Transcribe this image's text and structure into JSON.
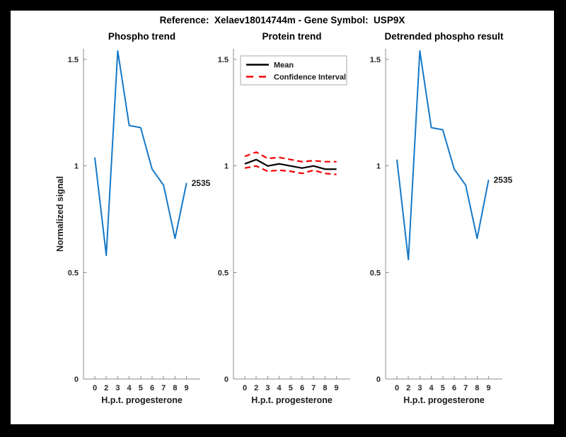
{
  "figure": {
    "title": "Reference:  Xelaev18014744m - Gene Symbol:  USP9X",
    "background": "#000000",
    "canvas": "#ffffff"
  },
  "colors": {
    "line_blue": "#1478c8",
    "mean_black": "#000000",
    "ci_red": "#f40000",
    "axis": "#8c8c8c",
    "legend_border": "#aaaaaa",
    "text": "#262626"
  },
  "chart_data": [
    {
      "id": "phospho-trend",
      "type": "line",
      "title": "Phospho trend",
      "xlabel": "H.p.t. progesterone",
      "ylabel": "Normalized signal",
      "ylim": [
        0,
        1.55
      ],
      "yticks": [
        0,
        0.5,
        1,
        1.5
      ],
      "ytick_labels": [
        "0",
        "0.5",
        "1",
        "1.5"
      ],
      "categories": [
        "0",
        "2",
        "3",
        "4",
        "5",
        "6",
        "7",
        "8",
        "9"
      ],
      "grid": false,
      "series": [
        {
          "name": "2535",
          "color": "#1478c8",
          "width": 2,
          "values": [
            1.04,
            0.58,
            1.54,
            1.19,
            1.18,
            0.985,
            0.91,
            0.66,
            0.92
          ]
        }
      ],
      "end_label": "2535"
    },
    {
      "id": "protein-trend",
      "type": "line",
      "title": "Protein trend",
      "xlabel": "H.p.t. progesterone",
      "ylabel": "",
      "ylim": [
        0,
        1.55
      ],
      "yticks": [
        0,
        0.5,
        1,
        1.5
      ],
      "ytick_labels": [
        "0",
        "0.5",
        "1",
        "1.5"
      ],
      "categories": [
        "0",
        "2",
        "3",
        "4",
        "5",
        "6",
        "7",
        "8",
        "9"
      ],
      "grid": false,
      "series": [
        {
          "name": "Mean",
          "color": "#000000",
          "width": 2.2,
          "values": [
            1.01,
            1.03,
            1.0,
            1.01,
            1.0,
            0.99,
            1.0,
            0.985,
            0.985
          ]
        },
        {
          "name": "CI upper",
          "color": "#f40000",
          "width": 2.2,
          "dash": "8 5",
          "values": [
            1.045,
            1.065,
            1.035,
            1.04,
            1.03,
            1.02,
            1.025,
            1.02,
            1.02
          ]
        },
        {
          "name": "CI lower",
          "color": "#f40000",
          "width": 2.2,
          "dash": "8 5",
          "values": [
            0.99,
            1.0,
            0.975,
            0.98,
            0.975,
            0.965,
            0.98,
            0.965,
            0.96
          ]
        }
      ],
      "legend": {
        "position": "top-left",
        "entries": [
          {
            "label": "Mean",
            "color": "#000000"
          },
          {
            "label": "Confidence Interval",
            "color": "#f40000",
            "dash": "10 8"
          }
        ]
      }
    },
    {
      "id": "detrended-phospho-result",
      "type": "line",
      "title": "Detrended phospho result",
      "xlabel": "H.p.t. progesterone",
      "ylabel": "",
      "ylim": [
        0,
        1.55
      ],
      "yticks": [
        0,
        0.5,
        1,
        1.5
      ],
      "ytick_labels": [
        "0",
        "0.5",
        "1",
        "1.5"
      ],
      "categories": [
        "0",
        "2",
        "3",
        "4",
        "5",
        "6",
        "7",
        "8",
        "9"
      ],
      "grid": false,
      "series": [
        {
          "name": "2535",
          "color": "#1478c8",
          "width": 2,
          "values": [
            1.03,
            0.56,
            1.54,
            1.18,
            1.17,
            0.985,
            0.91,
            0.66,
            0.935
          ]
        }
      ],
      "end_label": "2535"
    }
  ]
}
